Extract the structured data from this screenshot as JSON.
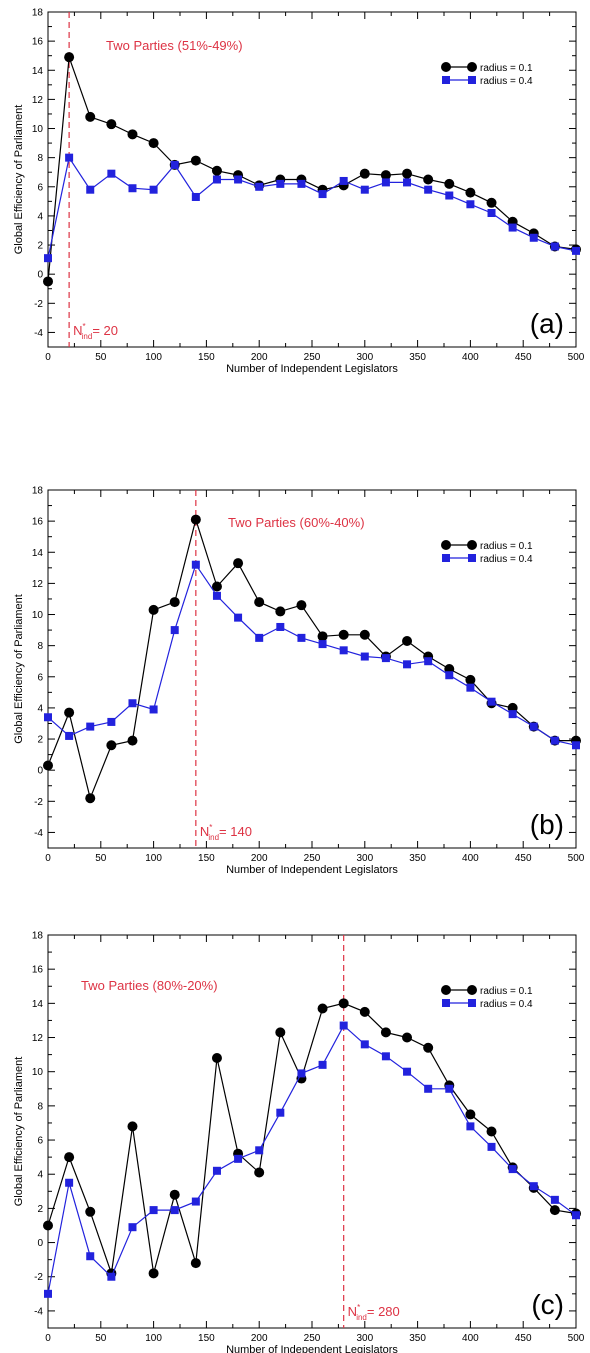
{
  "chart_data": [
    {
      "type": "line",
      "panel_label": "(a)",
      "annotation": "Two Parties (51%-49%)",
      "marker_label": {
        "base": "N",
        "sup": "*",
        "sub": "ind",
        "value": "= 20"
      },
      "marker_x": 20,
      "xlabel": "Number of Independent Legislators",
      "ylabel": "Global Efficiency of Parliament",
      "xlim": [
        0,
        500
      ],
      "ylim": [
        -5,
        18
      ],
      "xticks": [
        0,
        50,
        100,
        150,
        200,
        250,
        300,
        350,
        400,
        450,
        500
      ],
      "yticks": [
        -4,
        -2,
        0,
        2,
        4,
        6,
        8,
        10,
        12,
        14,
        16,
        18
      ],
      "legend_position": "top-right",
      "x": [
        0,
        20,
        40,
        60,
        80,
        100,
        120,
        140,
        160,
        180,
        200,
        220,
        240,
        260,
        280,
        300,
        320,
        340,
        360,
        380,
        400,
        420,
        440,
        460,
        480,
        500
      ],
      "series": [
        {
          "name": "radius = 0.1",
          "color": "#000000",
          "marker": "circle",
          "values": [
            -0.5,
            14.9,
            10.8,
            10.3,
            9.6,
            9.0,
            7.5,
            7.8,
            7.1,
            6.8,
            6.1,
            6.5,
            6.5,
            5.8,
            6.1,
            6.9,
            6.8,
            6.9,
            6.5,
            6.2,
            5.6,
            4.9,
            3.6,
            2.8,
            1.9,
            1.7
          ]
        },
        {
          "name": "radius = 0.4",
          "color": "#2222dd",
          "marker": "square",
          "values": [
            1.1,
            8.0,
            5.8,
            6.9,
            5.9,
            5.8,
            7.5,
            5.3,
            6.5,
            6.5,
            6.0,
            6.2,
            6.2,
            5.5,
            6.4,
            5.8,
            6.3,
            6.3,
            5.8,
            5.4,
            4.8,
            4.2,
            3.2,
            2.5,
            1.9,
            1.6
          ]
        }
      ]
    },
    {
      "type": "line",
      "panel_label": "(b)",
      "annotation": "Two Parties (60%-40%)",
      "marker_label": {
        "base": "N",
        "sup": "*",
        "sub": "ind",
        "value": "= 140"
      },
      "marker_x": 140,
      "xlabel": "Number of Independent Legislators",
      "ylabel": "Global Efficiency of Parliament",
      "xlim": [
        0,
        500
      ],
      "ylim": [
        -5,
        18
      ],
      "xticks": [
        0,
        50,
        100,
        150,
        200,
        250,
        300,
        350,
        400,
        450,
        500
      ],
      "yticks": [
        -4,
        -2,
        0,
        2,
        4,
        6,
        8,
        10,
        12,
        14,
        16,
        18
      ],
      "legend_position": "top-right",
      "x": [
        0,
        20,
        40,
        60,
        80,
        100,
        120,
        140,
        160,
        180,
        200,
        220,
        240,
        260,
        280,
        300,
        320,
        340,
        360,
        380,
        400,
        420,
        440,
        460,
        480,
        500
      ],
      "series": [
        {
          "name": "radius = 0.1",
          "color": "#000000",
          "marker": "circle",
          "values": [
            0.3,
            3.7,
            -1.8,
            1.6,
            1.9,
            10.3,
            10.8,
            16.1,
            11.8,
            13.3,
            10.8,
            10.2,
            10.6,
            8.6,
            8.7,
            8.7,
            7.3,
            8.3,
            7.3,
            6.5,
            5.8,
            4.3,
            4.0,
            2.8,
            1.9,
            1.9
          ]
        },
        {
          "name": "radius = 0.4",
          "color": "#2222dd",
          "marker": "square",
          "values": [
            3.4,
            2.2,
            2.8,
            3.1,
            4.3,
            3.9,
            9.0,
            13.2,
            11.2,
            9.8,
            8.5,
            9.2,
            8.5,
            8.1,
            7.7,
            7.3,
            7.2,
            6.8,
            7.0,
            6.1,
            5.3,
            4.4,
            3.6,
            2.8,
            1.9,
            1.6
          ]
        }
      ]
    },
    {
      "type": "line",
      "panel_label": "(c)",
      "annotation": "Two Parties (80%-20%)",
      "marker_label": {
        "base": "N",
        "sup": "*",
        "sub": "ind",
        "value": "= 280"
      },
      "marker_x": 280,
      "xlabel": "Number of Independent Legislators",
      "ylabel": "Global Efficiency of Parliament",
      "xlim": [
        0,
        500
      ],
      "ylim": [
        -5,
        18
      ],
      "xticks": [
        0,
        50,
        100,
        150,
        200,
        250,
        300,
        350,
        400,
        450,
        500
      ],
      "yticks": [
        -4,
        -2,
        0,
        2,
        4,
        6,
        8,
        10,
        12,
        14,
        16,
        18
      ],
      "legend_position": "top-right",
      "x": [
        0,
        20,
        40,
        60,
        80,
        100,
        120,
        140,
        160,
        180,
        200,
        220,
        240,
        260,
        280,
        300,
        320,
        340,
        360,
        380,
        400,
        420,
        440,
        460,
        480,
        500
      ],
      "series": [
        {
          "name": "radius = 0.1",
          "color": "#000000",
          "marker": "circle",
          "values": [
            1.0,
            5.0,
            1.8,
            -1.8,
            6.8,
            -1.8,
            2.8,
            -1.2,
            10.8,
            5.2,
            4.1,
            12.3,
            9.6,
            13.7,
            14.0,
            13.5,
            12.3,
            12.0,
            11.4,
            9.2,
            7.5,
            6.5,
            4.4,
            3.2,
            1.9,
            1.7
          ]
        },
        {
          "name": "radius = 0.4",
          "color": "#2222dd",
          "marker": "square",
          "values": [
            -3.0,
            3.5,
            -0.8,
            -2.0,
            0.9,
            1.9,
            1.9,
            2.4,
            4.2,
            4.9,
            5.4,
            7.6,
            9.9,
            10.4,
            12.7,
            11.6,
            10.9,
            10.0,
            9.0,
            9.0,
            6.8,
            5.6,
            4.3,
            3.3,
            2.5,
            1.6
          ]
        }
      ]
    }
  ]
}
